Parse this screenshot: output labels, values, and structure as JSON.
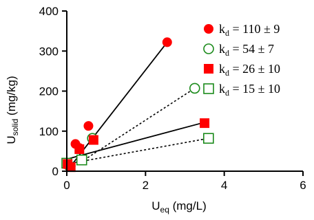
{
  "chart_data": {
    "type": "scatter",
    "title": "",
    "xlabel": {
      "main": "U",
      "sub": "eq",
      "unit": " (mg/L)"
    },
    "ylabel": {
      "main": "U",
      "sub": "solid",
      "unit": " (mg/kg)"
    },
    "xlim": [
      0,
      6
    ],
    "ylim": [
      0,
      400
    ],
    "xticks": [
      0,
      2,
      4,
      6
    ],
    "yticks": [
      0,
      100,
      200,
      300,
      400
    ],
    "grid": false,
    "legend_position": "top-right",
    "series": [
      {
        "name": "110 ± 9",
        "legend_prefix": "k",
        "legend_sub": "d",
        "marker": "circle",
        "filled": true,
        "color": "#ff0000",
        "line_style": "solid",
        "points": [
          [
            0.04,
            15
          ],
          [
            0.22,
            68
          ],
          [
            0.32,
            58
          ],
          [
            0.55,
            113
          ],
          [
            2.55,
            322
          ]
        ],
        "fit": [
          [
            0,
            0
          ],
          [
            2.55,
            322
          ]
        ]
      },
      {
        "name": "54 ± 7",
        "legend_prefix": "k",
        "legend_sub": "d",
        "marker": "circle",
        "filled": false,
        "color": "#1a8a1a",
        "line_style": "dotted",
        "points": [
          [
            0.05,
            14
          ],
          [
            0.65,
            82
          ],
          [
            3.25,
            207
          ]
        ],
        "fit": [
          [
            0,
            0
          ],
          [
            3.25,
            207
          ]
        ]
      },
      {
        "name": "26 ± 10",
        "legend_prefix": "k",
        "legend_sub": "d",
        "marker": "square",
        "filled": true,
        "color": "#ff0000",
        "line_style": "solid",
        "points": [
          [
            0.02,
            18
          ],
          [
            0.1,
            10
          ],
          [
            0.32,
            55
          ],
          [
            0.68,
            78
          ],
          [
            3.5,
            120
          ]
        ],
        "fit": [
          [
            0,
            30
          ],
          [
            3.5,
            122
          ]
        ]
      },
      {
        "name": "15 ± 10",
        "legend_prefix": "k",
        "legend_sub": "d",
        "marker": "square",
        "filled": false,
        "color": "#1a8a1a",
        "line_style": "dotted",
        "points": [
          [
            0.0,
            20
          ],
          [
            0.38,
            28
          ],
          [
            3.6,
            82
          ]
        ],
        "fit": [
          [
            0,
            18
          ],
          [
            3.6,
            82
          ]
        ]
      }
    ]
  }
}
